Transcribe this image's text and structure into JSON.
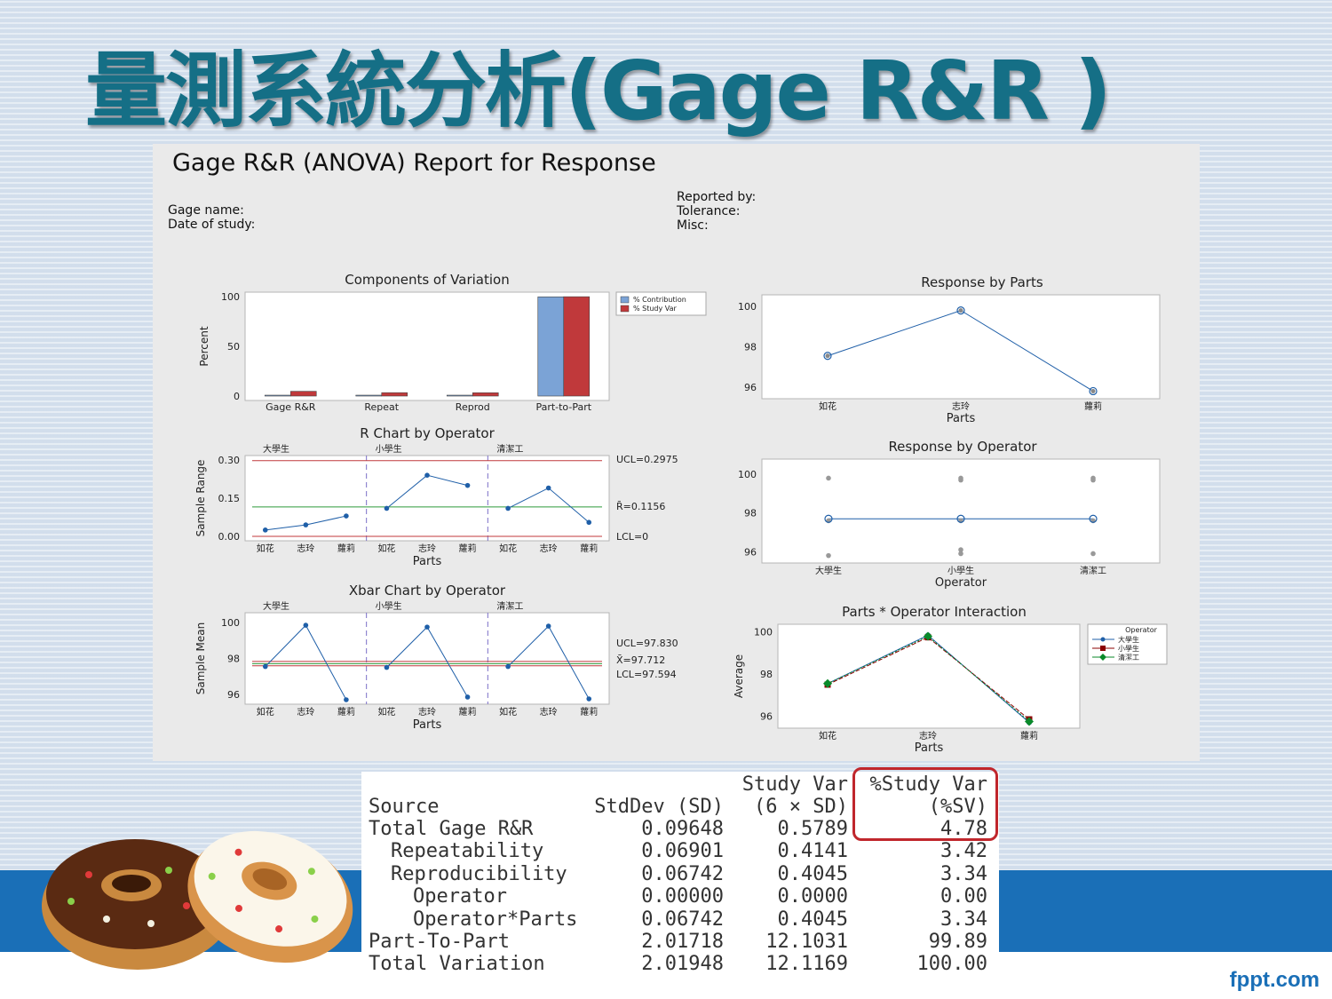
{
  "slide": {
    "title": "量測系統分析(Gage R&R )",
    "brand": "fppt.com"
  },
  "report": {
    "title": "Gage R&R (ANOVA) Report for Response",
    "meta_left": [
      "Gage name:",
      "Date of study:"
    ],
    "meta_right": [
      "Reported by:",
      "Tolerance:",
      "Misc:"
    ]
  },
  "colors": {
    "title": "#156f86",
    "band": "#1a6fb7",
    "contribution": "#7ba3d6",
    "study_var": "#c0393b",
    "ucl_line": "#c0393b",
    "center_line": "#2e9a3a",
    "series_blue": "#1f5fa8",
    "series_red": "#8b0000",
    "series_green": "#0a8a2a",
    "highlight": "#c0262c"
  },
  "chart_data": [
    {
      "id": "components",
      "type": "bar",
      "title": "Components of Variation",
      "ylabel": "Percent",
      "xlabel": "",
      "ylim": [
        0,
        100
      ],
      "yticks": [
        0,
        50,
        100
      ],
      "categories": [
        "Gage R&R",
        "Repeat",
        "Reprod",
        "Part-to-Part"
      ],
      "series": [
        {
          "name": "% Contribution",
          "values": [
            0.23,
            0.12,
            0.11,
            99.77
          ]
        },
        {
          "name": "% Study Var",
          "values": [
            4.78,
            3.42,
            3.34,
            99.89
          ]
        }
      ],
      "legend": "right"
    },
    {
      "id": "r_chart",
      "type": "line",
      "title": "R Chart by Operator",
      "ylabel": "Sample Range",
      "xlabel": "Parts",
      "ylim": [
        0,
        0.3
      ],
      "yticks": [
        "0.00",
        "0.15",
        "0.30"
      ],
      "groups": [
        "大學生",
        "小學生",
        "清潔工"
      ],
      "categories": [
        "如花",
        "志玲",
        "蘿莉",
        "如花",
        "志玲",
        "蘿莉",
        "如花",
        "志玲",
        "蘿莉"
      ],
      "values": [
        0.025,
        0.045,
        0.08,
        0.11,
        0.24,
        0.2,
        0.11,
        0.19,
        0.055
      ],
      "lines": {
        "ucl": 0.2975,
        "center": 0.1156,
        "lcl": 0
      },
      "labels": {
        "ucl": "UCL=0.2975",
        "center": "R̄=0.1156",
        "lcl": "LCL=0"
      }
    },
    {
      "id": "xbar_chart",
      "type": "line",
      "title": "Xbar Chart by Operator",
      "ylabel": "Sample Mean",
      "xlabel": "Parts",
      "ylim": [
        95.7,
        100.3
      ],
      "yticks": [
        "96",
        "98",
        "100"
      ],
      "groups": [
        "大學生",
        "小學生",
        "清潔工"
      ],
      "categories": [
        "如花",
        "志玲",
        "蘿莉",
        "如花",
        "志玲",
        "蘿莉",
        "如花",
        "志玲",
        "蘿莉"
      ],
      "values": [
        97.55,
        99.85,
        95.7,
        97.5,
        99.75,
        95.85,
        97.55,
        99.8,
        95.75
      ],
      "lines": {
        "ucl": 97.83,
        "center": 97.712,
        "lcl": 97.594
      },
      "labels": {
        "ucl": "UCL=97.830",
        "center": "X̄=97.712",
        "lcl": "LCL=97.594"
      }
    },
    {
      "id": "resp_parts",
      "type": "scatter",
      "title": "Response by Parts",
      "xlabel": "Parts",
      "ylabel": "",
      "ylim": [
        95.6,
        100.4
      ],
      "yticks": [
        "96",
        "98",
        "100"
      ],
      "categories": [
        "如花",
        "志玲",
        "蘿莉"
      ],
      "means": [
        97.55,
        99.8,
        95.8
      ]
    },
    {
      "id": "resp_operator",
      "type": "scatter",
      "title": "Response by Operator",
      "xlabel": "Operator",
      "ylabel": "",
      "ylim": [
        95.6,
        100.6
      ],
      "yticks": [
        "96",
        "98",
        "100"
      ],
      "categories": [
        "大學生",
        "小學生",
        "清潔工"
      ],
      "means": [
        97.7,
        97.7,
        97.7
      ],
      "points": [
        [
          99.8,
          97.6,
          95.8
        ],
        [
          99.7,
          99.8,
          97.6,
          95.9,
          96.1
        ],
        [
          99.8,
          99.7,
          97.6,
          95.9
        ]
      ]
    },
    {
      "id": "interaction",
      "type": "line",
      "title": "Parts * Operator Interaction",
      "xlabel": "Parts",
      "ylabel": "Average",
      "ylim": [
        95.6,
        100.2
      ],
      "yticks": [
        "96",
        "98",
        "100"
      ],
      "categories": [
        "如花",
        "志玲",
        "蘿莉"
      ],
      "legend_title": "Operator",
      "series": [
        {
          "name": "大學生",
          "values": [
            97.55,
            99.85,
            95.7
          ]
        },
        {
          "name": "小學生",
          "values": [
            97.5,
            99.75,
            95.85
          ]
        },
        {
          "name": "清潔工",
          "values": [
            97.55,
            99.8,
            95.75
          ]
        }
      ]
    },
    {
      "id": "table",
      "type": "table",
      "headers": {
        "source": "Source",
        "sd": "StdDev (SD)",
        "sv_top": "Study Var",
        "sv_bottom": "(6 × SD)",
        "psv_top": "%Study Var",
        "psv_bottom": "(%SV)"
      },
      "rows": [
        {
          "source": "Total Gage R&R",
          "indent": 0,
          "sd": "0.09648",
          "sv": "0.5789",
          "psv": "4.78"
        },
        {
          "source": "Repeatability",
          "indent": 1,
          "sd": "0.06901",
          "sv": "0.4141",
          "psv": "3.42"
        },
        {
          "source": "Reproducibility",
          "indent": 1,
          "sd": "0.06742",
          "sv": "0.4045",
          "psv": "3.34"
        },
        {
          "source": "Operator",
          "indent": 2,
          "sd": "0.00000",
          "sv": "0.0000",
          "psv": "0.00"
        },
        {
          "source": "Operator*Parts",
          "indent": 2,
          "sd": "0.06742",
          "sv": "0.4045",
          "psv": "3.34"
        },
        {
          "source": "Part-To-Part",
          "indent": 0,
          "sd": "2.01718",
          "sv": "12.1031",
          "psv": "99.89"
        },
        {
          "source": "Total Variation",
          "indent": 0,
          "sd": "2.01948",
          "sv": "12.1169",
          "psv": "100.00"
        }
      ]
    }
  ]
}
